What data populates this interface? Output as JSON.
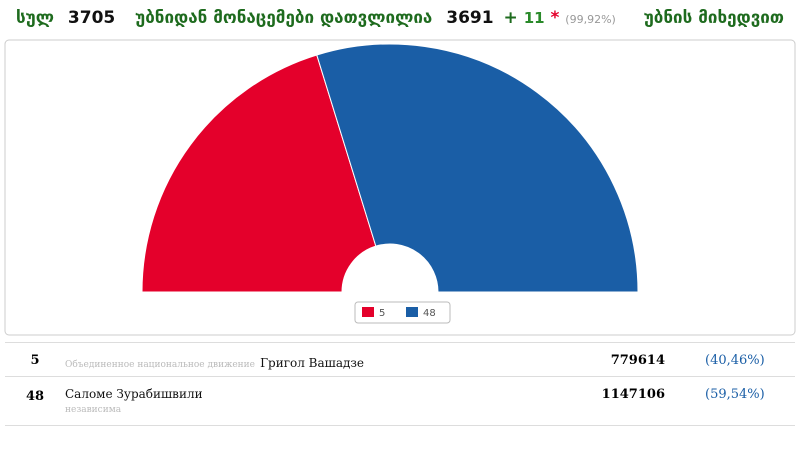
{
  "header": {
    "total_label": "სულ",
    "total": "3705",
    "counted_label": "უბნიდან მონაცემები დათვლილია",
    "counted": "3691",
    "plus": "+",
    "extra": "11",
    "star": "*",
    "percent": "(99,92%)",
    "suffix": "უბნის მიხედვით"
  },
  "chart_data": {
    "type": "half-donut",
    "categories": [
      "5",
      "48"
    ],
    "values": [
      779614,
      1147106
    ],
    "colors": [
      "#e4002b",
      "#1a5ea6"
    ]
  },
  "table": {
    "rows": [
      {
        "party": "Объединенное национальное движение",
        "name": "Григол Вашадзе",
        "share": "(40,46%)"
      },
      {
        "party": "независима",
        "name": "Саломе Зурабишвили",
        "share": "(59,54%)"
      }
    ]
  }
}
